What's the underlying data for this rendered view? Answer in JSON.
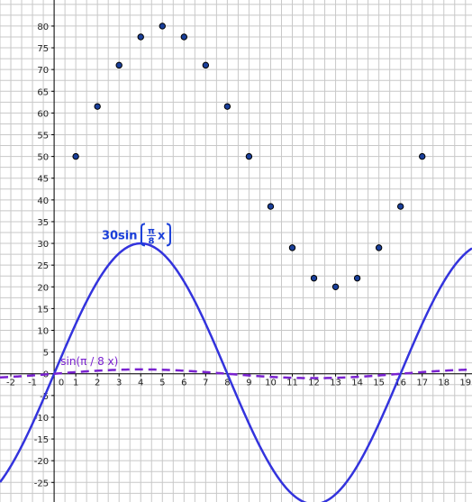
{
  "app": {
    "view": "graphics"
  },
  "colors": {
    "grid": "#c8c8c8",
    "axis": "#000000",
    "main_curve": "#3333dd",
    "small_curve": "#7a22d0",
    "points": "#1a3f9a",
    "point_stroke": "#000000",
    "label_blue": "#1a3fd9"
  },
  "chart_data": {
    "type": "scatter",
    "xlim": [
      -2.5,
      19.3
    ],
    "ylim": [
      -29.5,
      86
    ],
    "grid": true,
    "x_ticks": [
      -2,
      -1,
      0,
      1,
      2,
      3,
      4,
      5,
      6,
      7,
      8,
      9,
      10,
      11,
      12,
      13,
      14,
      15,
      16,
      17,
      18,
      19
    ],
    "y_ticks": [
      -25,
      -20,
      -15,
      -10,
      -5,
      0,
      5,
      10,
      15,
      20,
      25,
      30,
      35,
      40,
      45,
      50,
      55,
      60,
      65,
      70,
      75,
      80
    ],
    "series": [
      {
        "name": "30sin(π/8x)",
        "kind": "function",
        "style": "solid",
        "amplitude": 30,
        "frequency_over_pi": 0.125,
        "label": {
          "prefix": "30sin",
          "numerator": "π",
          "denominator": "8",
          "suffix": "x"
        },
        "label_anchor": [
          2.2,
          32
        ]
      },
      {
        "name": "sin(π / 8 x)",
        "kind": "function",
        "style": "dashed",
        "amplitude": 1,
        "frequency_over_pi": 0.125,
        "label": "sin(π / 8 x)",
        "label_anchor": [
          0.3,
          2
        ]
      },
      {
        "kind": "points",
        "x": [
          1,
          2,
          3,
          4,
          5,
          6,
          7,
          8,
          9,
          10,
          11,
          12,
          13,
          14,
          15,
          16,
          17
        ],
        "y": [
          50,
          61.5,
          71,
          77.5,
          80,
          77.5,
          71,
          61.5,
          50,
          38.5,
          29,
          22,
          20,
          22,
          29,
          38.5,
          50
        ]
      }
    ]
  }
}
